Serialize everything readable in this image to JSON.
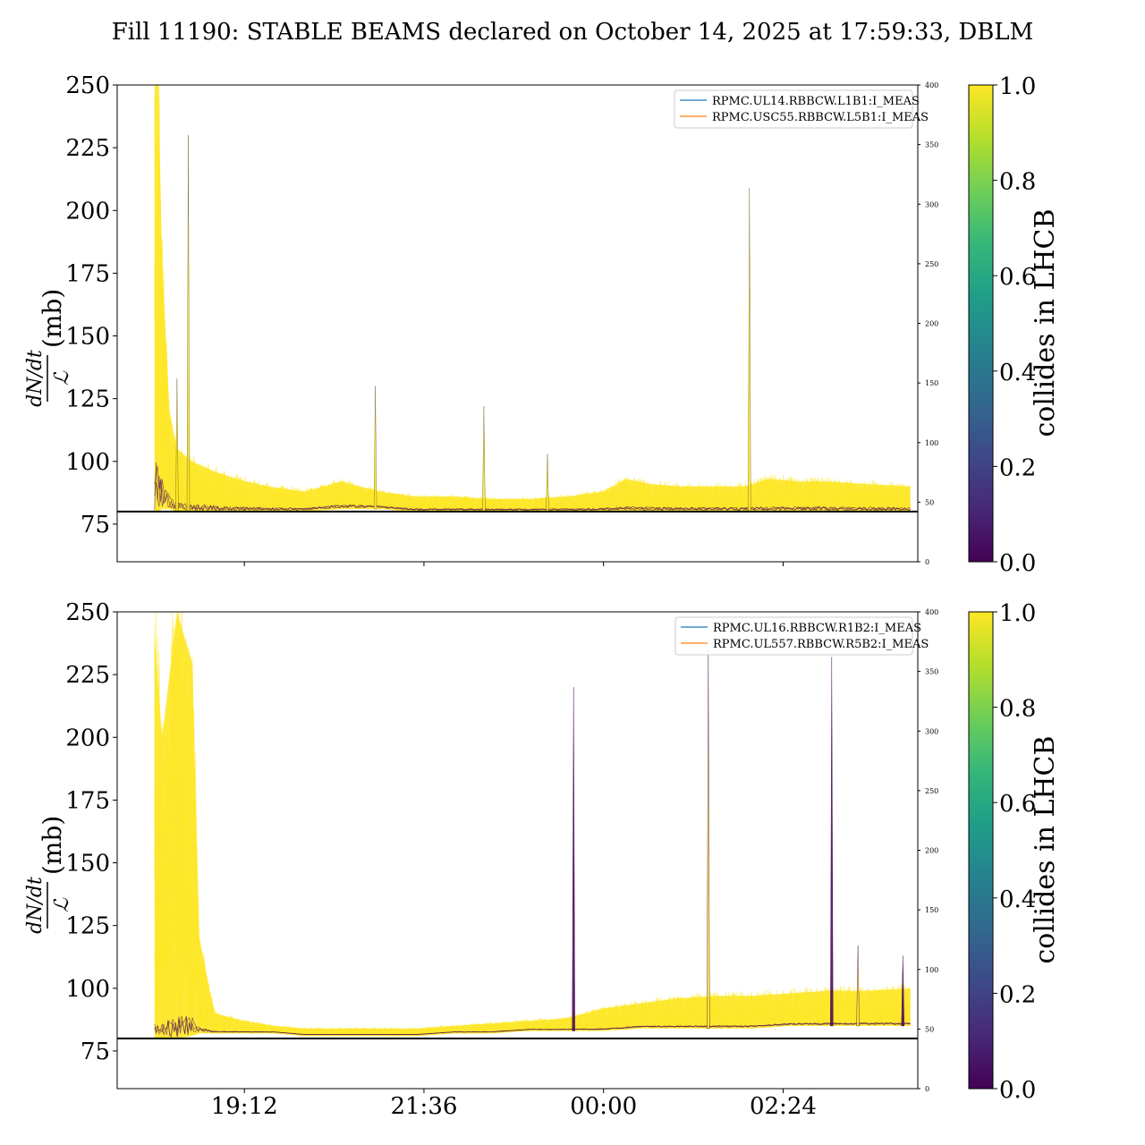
{
  "figure": {
    "title": "Fill 11190: STABLE BEAMS declared on October 14, 2025 at 17:59:33, DBLM"
  },
  "colorbar": {
    "label": "collides in LHCB",
    "ticks": [
      "0.0",
      "0.2",
      "0.4",
      "0.6",
      "0.8",
      "1.0"
    ],
    "colors": [
      "#440154",
      "#482878",
      "#3e4989",
      "#31688e",
      "#26828e",
      "#1f9e89",
      "#35b779",
      "#6ece58",
      "#b5de2b",
      "#fde725"
    ]
  },
  "threshold_line": {
    "value": 80,
    "color": "#000000"
  },
  "chart_data": [
    {
      "type": "line",
      "panel": "top",
      "ylabel_num": "dN/dt",
      "ylabel_den": "ℒ",
      "ylabel_unit": "(mb)",
      "ylim": [
        60,
        250
      ],
      "yticks": [
        75,
        100,
        125,
        150,
        175,
        200,
        225,
        250
      ],
      "y2lim": [
        0,
        400
      ],
      "y2ticks": [
        0,
        50,
        100,
        150,
        200,
        250,
        300,
        350,
        400
      ],
      "xticks": [
        "19:12",
        "21:36",
        "00:00",
        "02:24"
      ],
      "xtick_hours": [
        19.2,
        21.6,
        24.0,
        26.4
      ],
      "xlim_hours": [
        17.5,
        28.2
      ],
      "legend": {
        "placement": "top-right",
        "entries": [
          {
            "name": "RPMC.UL14.RBBCW.L1B1:I_MEAS",
            "color": "#1f77b4"
          },
          {
            "name": "RPMC.USC55.RBBCW.L5B1:I_MEAS",
            "color": "#ff7f0e"
          }
        ]
      },
      "data_start_hour": 18.0,
      "data_end_hour": 28.1,
      "envelope": {
        "x_hours": [
          18.0,
          18.05,
          18.1,
          18.2,
          18.3,
          18.5,
          18.8,
          19.1,
          19.5,
          20.0,
          20.5,
          21.0,
          21.5,
          22.0,
          22.5,
          23.0,
          23.5,
          24.0,
          24.3,
          24.6,
          25.0,
          25.5,
          25.9,
          26.2,
          26.6,
          27.0,
          27.5,
          28.1
        ],
        "upper": [
          250,
          250,
          180,
          120,
          105,
          100,
          96,
          93,
          90,
          88,
          92,
          88,
          86,
          86,
          85,
          85,
          86,
          88,
          93,
          91,
          90,
          90,
          90,
          93,
          92,
          92,
          91,
          90
        ],
        "lower": [
          80,
          80,
          81,
          81,
          80,
          80,
          80,
          80,
          80,
          80,
          81,
          81,
          80,
          80,
          80,
          80,
          80,
          80,
          80,
          80,
          80,
          80,
          80,
          80,
          80,
          80,
          80,
          80
        ]
      },
      "spikes": [
        {
          "x_hour": 18.45,
          "y": 230
        },
        {
          "x_hour": 18.3,
          "y": 133
        },
        {
          "x_hour": 20.95,
          "y": 130
        },
        {
          "x_hour": 22.4,
          "y": 122
        },
        {
          "x_hour": 23.25,
          "y": 103
        },
        {
          "x_hour": 25.95,
          "y": 209
        }
      ]
    },
    {
      "type": "line",
      "panel": "bottom",
      "ylabel_num": "dN/dt",
      "ylabel_den": "ℒ",
      "ylabel_unit": "(mb)",
      "ylim": [
        60,
        250
      ],
      "yticks": [
        75,
        100,
        125,
        150,
        175,
        200,
        225,
        250
      ],
      "y2lim": [
        0,
        400
      ],
      "y2ticks": [
        0,
        50,
        100,
        150,
        200,
        250,
        300,
        350,
        400
      ],
      "xticks": [
        "19:12",
        "21:36",
        "00:00",
        "02:24"
      ],
      "xtick_hours": [
        19.2,
        21.6,
        24.0,
        26.4
      ],
      "xlim_hours": [
        17.5,
        28.2
      ],
      "legend": {
        "placement": "top-right",
        "entries": [
          {
            "name": "RPMC.UL16.RBBCW.R1B2:I_MEAS",
            "color": "#1f77b4"
          },
          {
            "name": "RPMC.UL557.RBBCW.R5B2:I_MEAS",
            "color": "#ff7f0e"
          }
        ]
      },
      "data_start_hour": 18.0,
      "data_end_hour": 28.1,
      "envelope": {
        "x_hours": [
          18.0,
          18.1,
          18.3,
          18.5,
          18.6,
          18.8,
          19.2,
          19.6,
          20.0,
          20.5,
          21.0,
          21.5,
          22.0,
          22.5,
          23.0,
          23.5,
          24.0,
          24.5,
          25.0,
          25.5,
          26.0,
          26.5,
          27.0,
          27.5,
          28.1
        ],
        "upper": [
          240,
          200,
          250,
          230,
          120,
          90,
          87,
          85,
          84,
          84,
          84,
          84,
          85,
          86,
          87,
          88,
          92,
          94,
          96,
          97,
          97,
          98,
          99,
          99,
          100
        ],
        "lower": [
          80,
          80,
          80,
          81,
          82,
          82,
          82,
          82,
          81,
          81,
          81,
          81,
          82,
          82,
          83,
          83,
          83,
          84,
          84,
          84,
          84,
          85,
          85,
          85,
          85
        ]
      },
      "spikes": [
        {
          "x_hour": 23.6,
          "y": 220
        },
        {
          "x_hour": 25.4,
          "y": 235
        },
        {
          "x_hour": 27.05,
          "y": 232
        },
        {
          "x_hour": 27.4,
          "y": 117
        },
        {
          "x_hour": 28.0,
          "y": 113
        }
      ]
    }
  ]
}
